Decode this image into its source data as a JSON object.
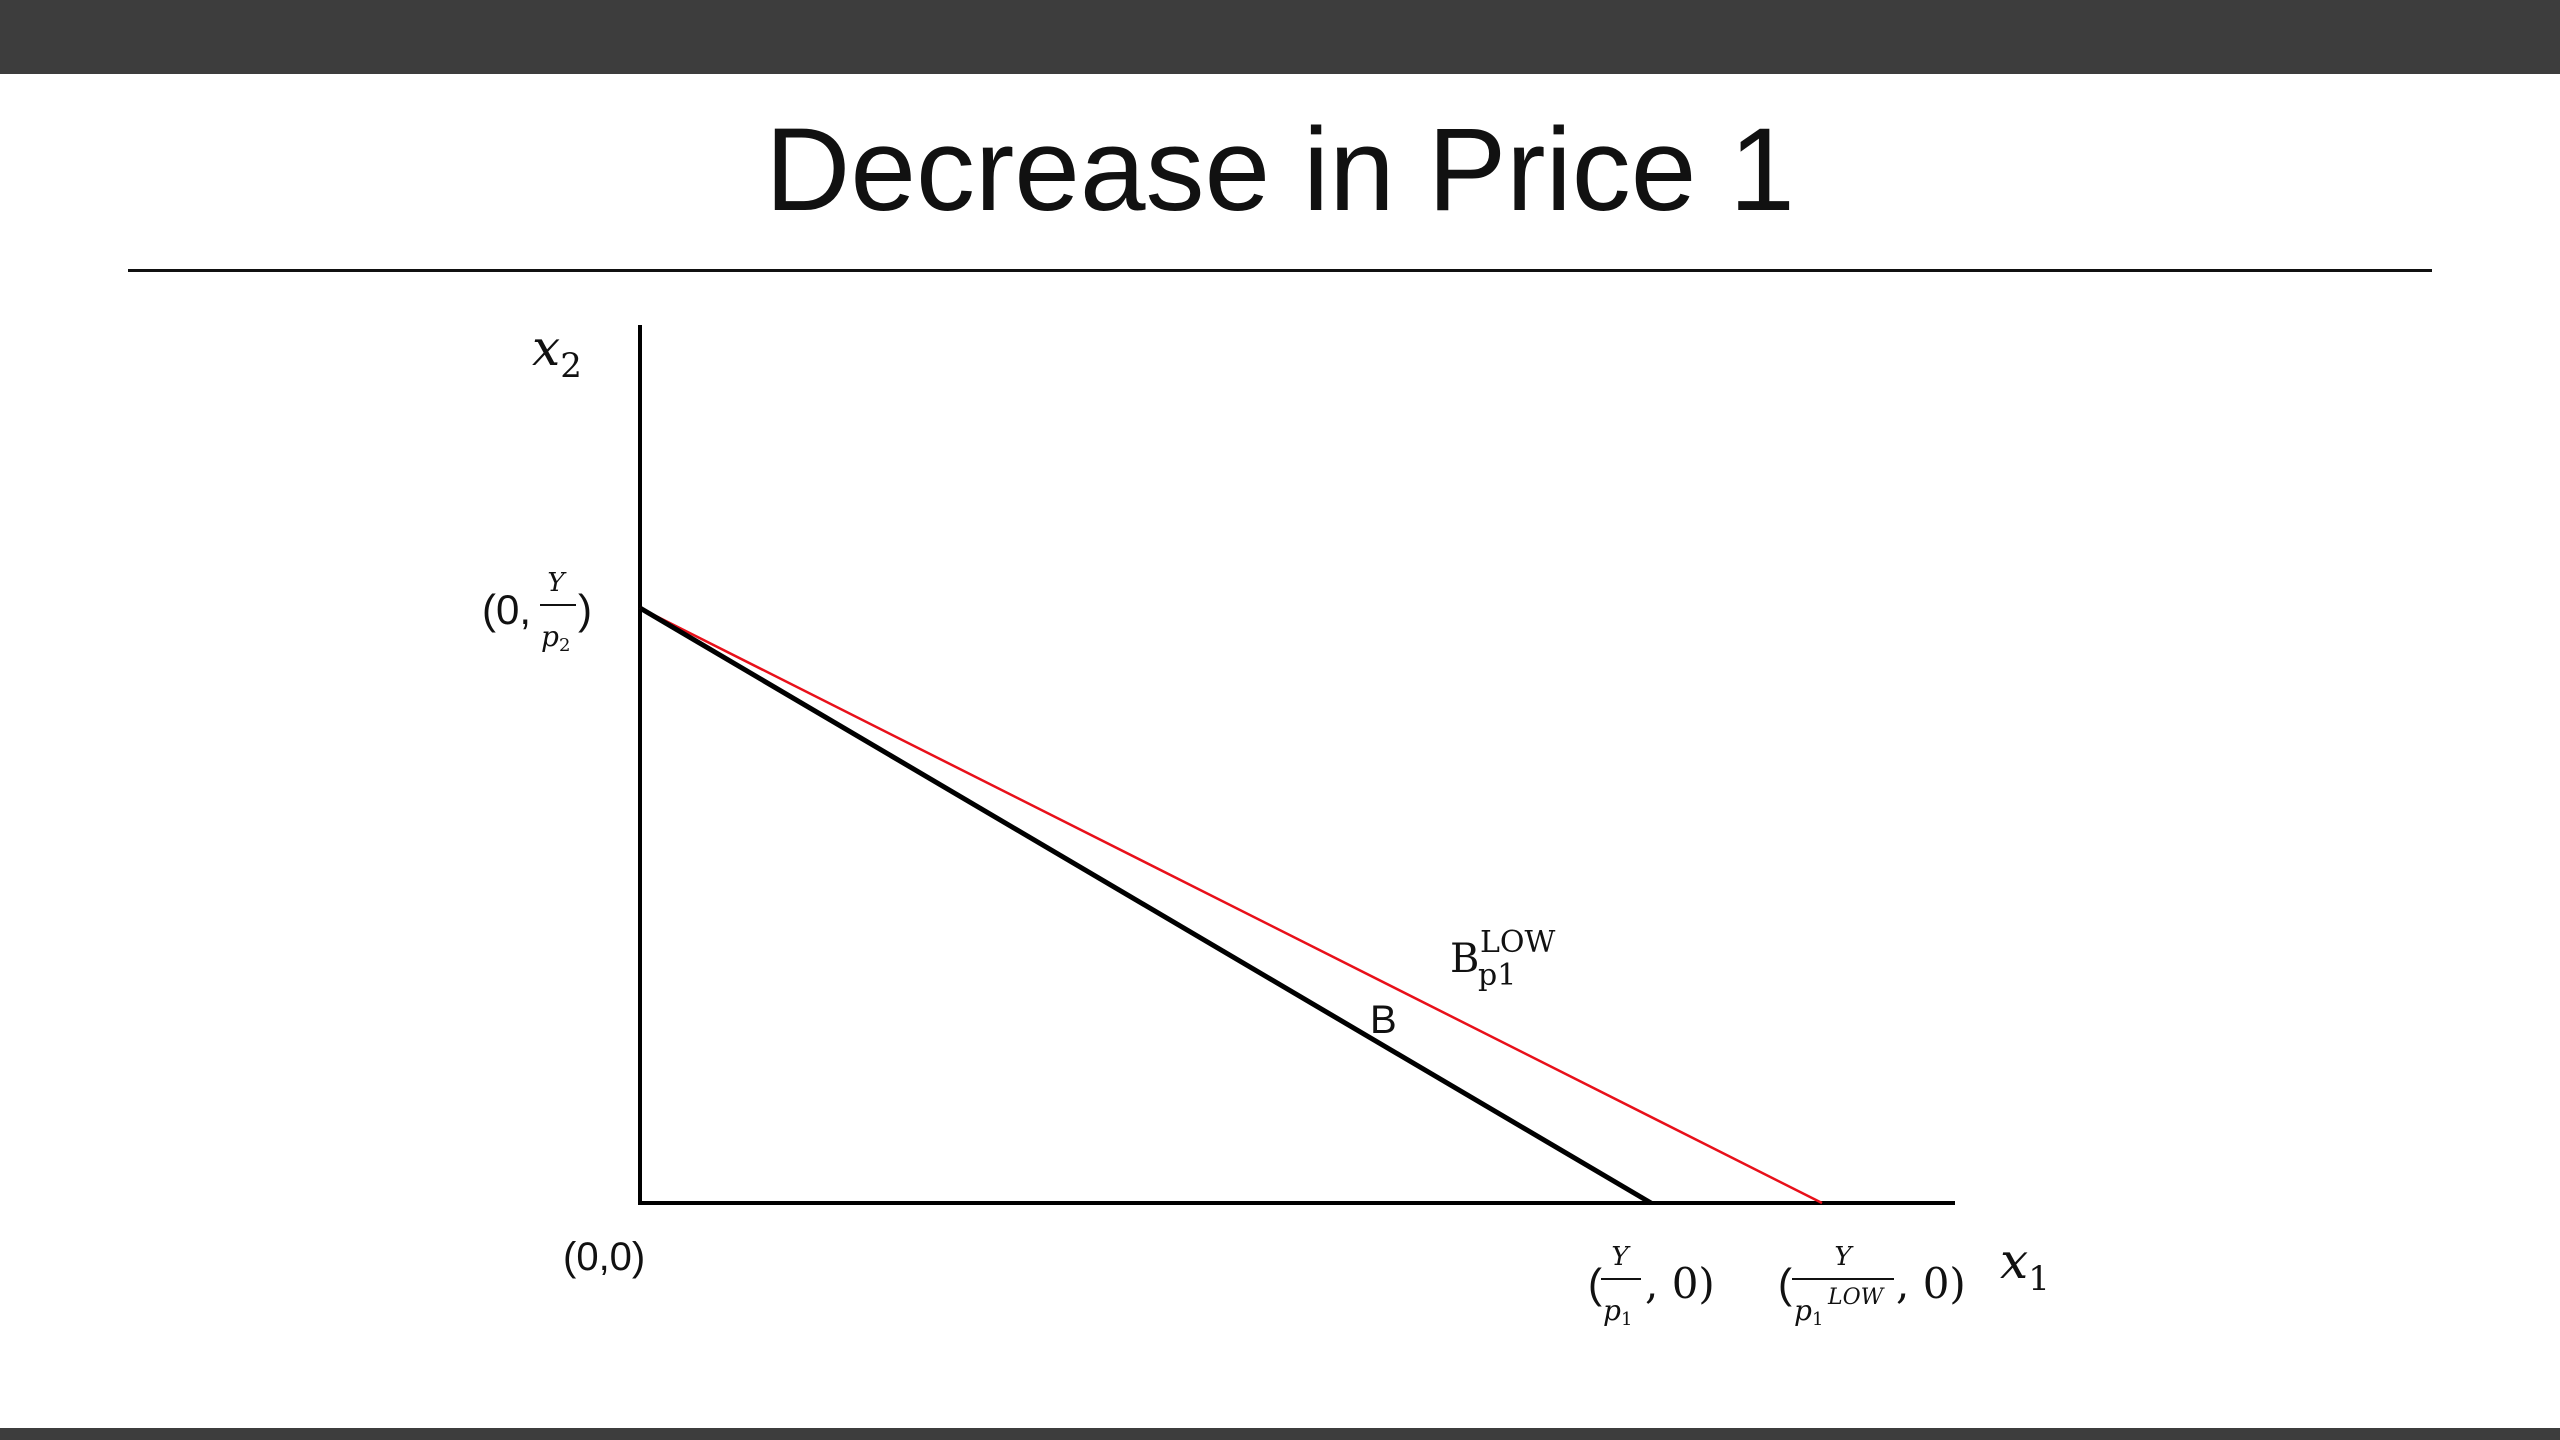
{
  "slide": {
    "title": "Decrease in Price 1"
  },
  "diagram": {
    "y_axis_label": {
      "var": "x",
      "sub": "2"
    },
    "x_axis_label": {
      "var": "x",
      "sub": "1"
    },
    "origin_label": "(0,0)",
    "y_intercept_label": {
      "open": "(0,",
      "num": "Y",
      "den": "p",
      "den_sub": "2",
      "close": ")"
    },
    "x_intercept_original": {
      "open": "(",
      "num": "Y",
      "den": "p",
      "den_sub": "1",
      "close": ", 0)"
    },
    "x_intercept_low": {
      "open": "(",
      "num": "Y",
      "den": "p",
      "den_sub": "1",
      "den_sup": "LOW",
      "close": ", 0)"
    },
    "budget_line_original": {
      "label": "B",
      "color": "#000000"
    },
    "budget_line_low": {
      "label_base": "B",
      "label_sub": "p1",
      "label_sup": "LOW",
      "color": "#e8101a"
    }
  }
}
